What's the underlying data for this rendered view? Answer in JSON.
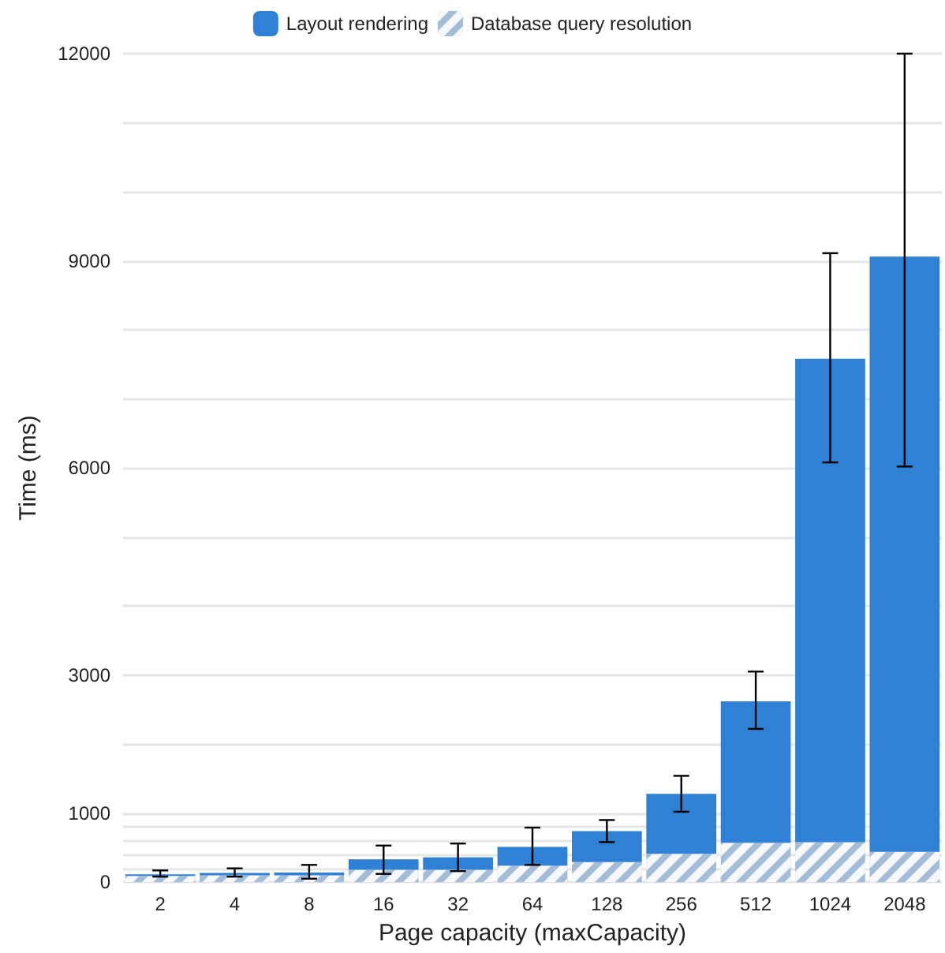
{
  "chart_data": {
    "type": "bar",
    "stacked": true,
    "xlabel": "Page capacity (maxCapacity)",
    "ylabel": "Time (ms)",
    "categories": [
      "2",
      "4",
      "8",
      "16",
      "32",
      "64",
      "128",
      "256",
      "512",
      "1024",
      "2048"
    ],
    "series": [
      {
        "name": "Database query resolution",
        "color": "#a3bcd8",
        "values": [
          90,
          100,
          100,
          180,
          180,
          240,
          290,
          410,
          570,
          580,
          440
        ]
      },
      {
        "name": "Layout rendering",
        "color": "#2e81d4",
        "values": [
          25,
          35,
          40,
          150,
          180,
          270,
          450,
          870,
          2050,
          7000,
          8620
        ],
        "errors": [
          [
            80,
            170
          ],
          [
            80,
            200
          ],
          [
            50,
            250
          ],
          [
            120,
            530
          ],
          [
            160,
            560
          ],
          [
            250,
            790
          ],
          [
            580,
            900
          ],
          [
            1020,
            1540
          ],
          [
            2220,
            3050
          ],
          [
            6080,
            9110
          ],
          [
            6020,
            12000
          ]
        ]
      }
    ],
    "ylim": [
      0,
      12000
    ],
    "yticks": [
      0,
      {
        "value": 200,
        "label": null
      },
      {
        "value": 400,
        "label": null
      },
      {
        "value": 600,
        "label": null
      },
      {
        "value": 800,
        "label": null
      },
      1000,
      {
        "value": 2000,
        "label": null
      },
      3000,
      {
        "value": 4000,
        "label": null
      },
      {
        "value": 5000,
        "label": null
      },
      6000,
      {
        "value": 7000,
        "label": null
      },
      {
        "value": 8000,
        "label": null
      },
      9000,
      {
        "value": 10000,
        "label": null
      },
      {
        "value": 11000,
        "label": null
      },
      12000
    ],
    "grid": "y",
    "legend": "top"
  }
}
